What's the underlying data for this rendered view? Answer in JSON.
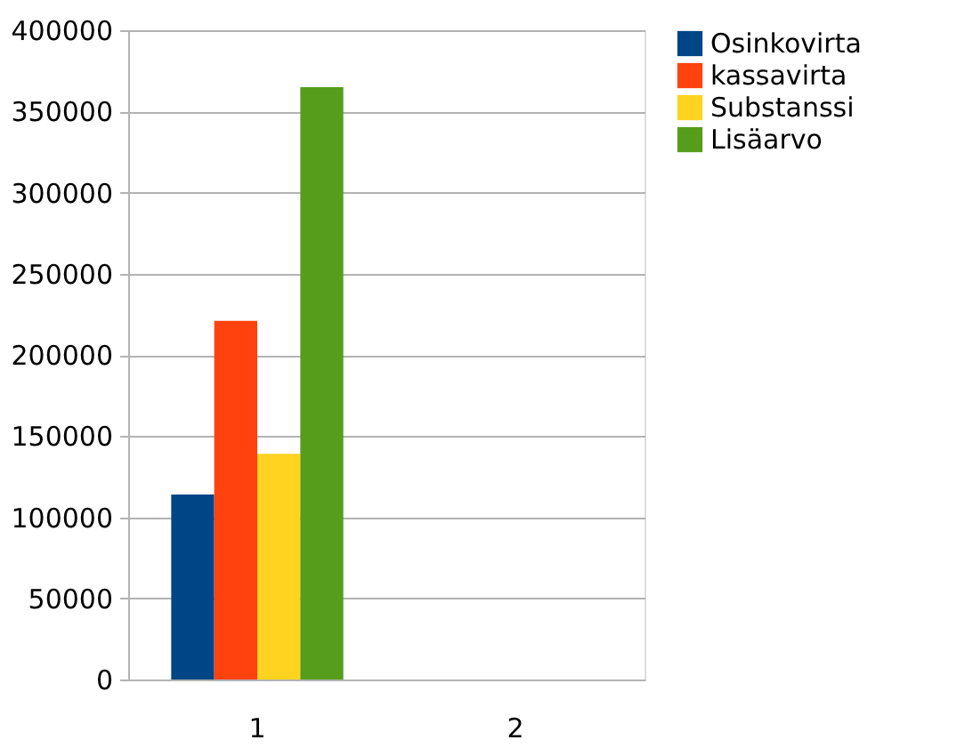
{
  "chart_data": {
    "type": "bar",
    "categories": [
      "1",
      "2"
    ],
    "series": [
      {
        "name": "Osinkovirta",
        "color": "#004586",
        "values": [
          114000,
          null
        ]
      },
      {
        "name": "kassavirta",
        "color": "#ff420e",
        "values": [
          221000,
          null
        ]
      },
      {
        "name": "Substanssi",
        "color": "#ffd320",
        "values": [
          139000,
          null
        ]
      },
      {
        "name": "Lisäarvo",
        "color": "#579d1c",
        "values": [
          365000,
          null
        ]
      }
    ],
    "ylim": [
      0,
      400000
    ],
    "yticks": [
      0,
      50000,
      100000,
      150000,
      200000,
      250000,
      300000,
      350000,
      400000
    ],
    "grid": "y",
    "legend": "right"
  }
}
